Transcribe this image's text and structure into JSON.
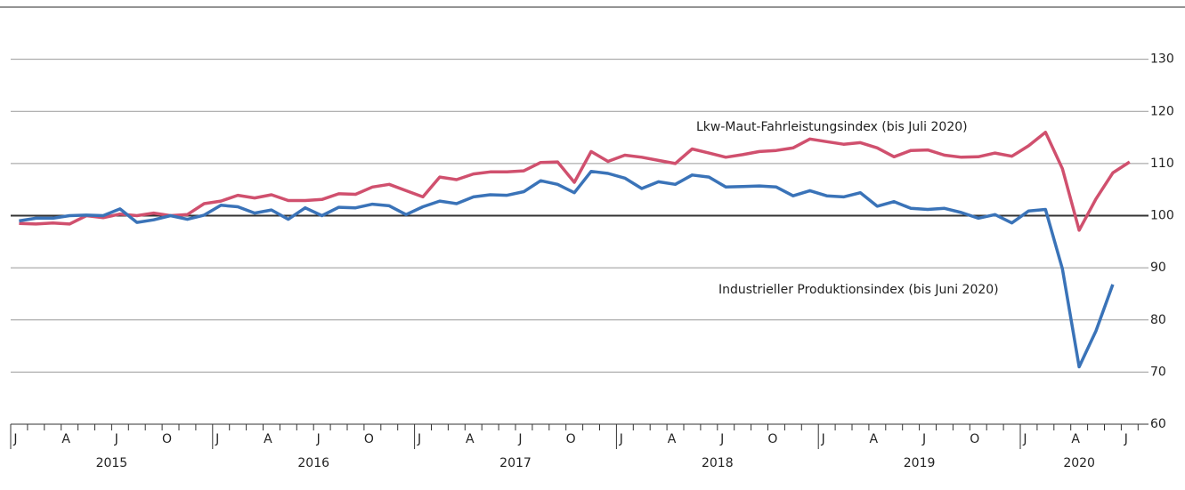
{
  "chart_data": {
    "type": "line",
    "categories": [
      "J",
      null,
      null,
      "A",
      null,
      null,
      "J",
      null,
      null,
      "O",
      null,
      null,
      "J",
      null,
      null,
      "A",
      null,
      null,
      "J",
      null,
      null,
      "O",
      null,
      null,
      "J",
      null,
      null,
      "A",
      null,
      null,
      "J",
      null,
      null,
      "O",
      null,
      null,
      "J",
      null,
      null,
      "A",
      null,
      null,
      "J",
      null,
      null,
      "O",
      null,
      null,
      "J",
      null,
      null,
      "A",
      null,
      null,
      "J",
      null,
      null,
      "O",
      null,
      null,
      "J",
      null,
      null,
      "A",
      null,
      null,
      "J"
    ],
    "years": [
      "2015",
      "2016",
      "2017",
      "2018",
      "2019",
      "2020"
    ],
    "series": [
      {
        "name": "Lkw-Maut-Fahrleistungsindex (bis Juli 2020)",
        "color": "#d0506e",
        "values": [
          98.5,
          98.4,
          98.6,
          98.4,
          100.0,
          99.6,
          100.3,
          100.0,
          100.5,
          100.0,
          100.2,
          102.3,
          102.8,
          103.9,
          103.4,
          104.0,
          102.9,
          102.9,
          103.1,
          104.2,
          104.1,
          105.5,
          106.0,
          104.8,
          103.6,
          107.4,
          106.9,
          108.0,
          108.4,
          108.4,
          108.6,
          110.2,
          110.3,
          106.4,
          112.3,
          110.4,
          111.6,
          111.2,
          110.6,
          110.0,
          112.8,
          112.0,
          111.2,
          111.7,
          112.3,
          112.5,
          113.0,
          114.7,
          114.2,
          113.7,
          114.0,
          113.0,
          111.3,
          112.5,
          112.6,
          111.6,
          111.2,
          111.3,
          112.0,
          111.4,
          113.4,
          116.0,
          109.0,
          97.2,
          103.2,
          108.2,
          110.3
        ]
      },
      {
        "name": "Industrieller Produktionsindex (bis Juni 2020)",
        "color": "#3a73b8",
        "values": [
          99.0,
          99.5,
          99.5,
          100.0,
          100.1,
          100.0,
          101.3,
          98.7,
          99.2,
          100.0,
          99.3,
          100.1,
          102.0,
          101.7,
          100.5,
          101.1,
          99.3,
          101.5,
          100.0,
          101.6,
          101.5,
          102.2,
          101.9,
          100.2,
          101.7,
          102.8,
          102.3,
          103.6,
          104.0,
          103.9,
          104.6,
          106.7,
          106.0,
          104.4,
          108.5,
          108.1,
          107.2,
          105.2,
          106.5,
          106.0,
          107.8,
          107.4,
          105.5,
          105.6,
          105.7,
          105.5,
          103.8,
          104.8,
          103.8,
          103.6,
          104.4,
          101.8,
          102.7,
          101.4,
          101.2,
          101.4,
          100.6,
          99.5,
          100.2,
          98.6,
          100.9,
          101.2,
          89.8,
          71.0,
          77.9,
          86.8,
          null
        ]
      }
    ],
    "ylim": [
      60,
      140
    ],
    "yticks": [
      60,
      70,
      80,
      90,
      100,
      110,
      120,
      130
    ],
    "reference_line": 100,
    "grid": true
  }
}
